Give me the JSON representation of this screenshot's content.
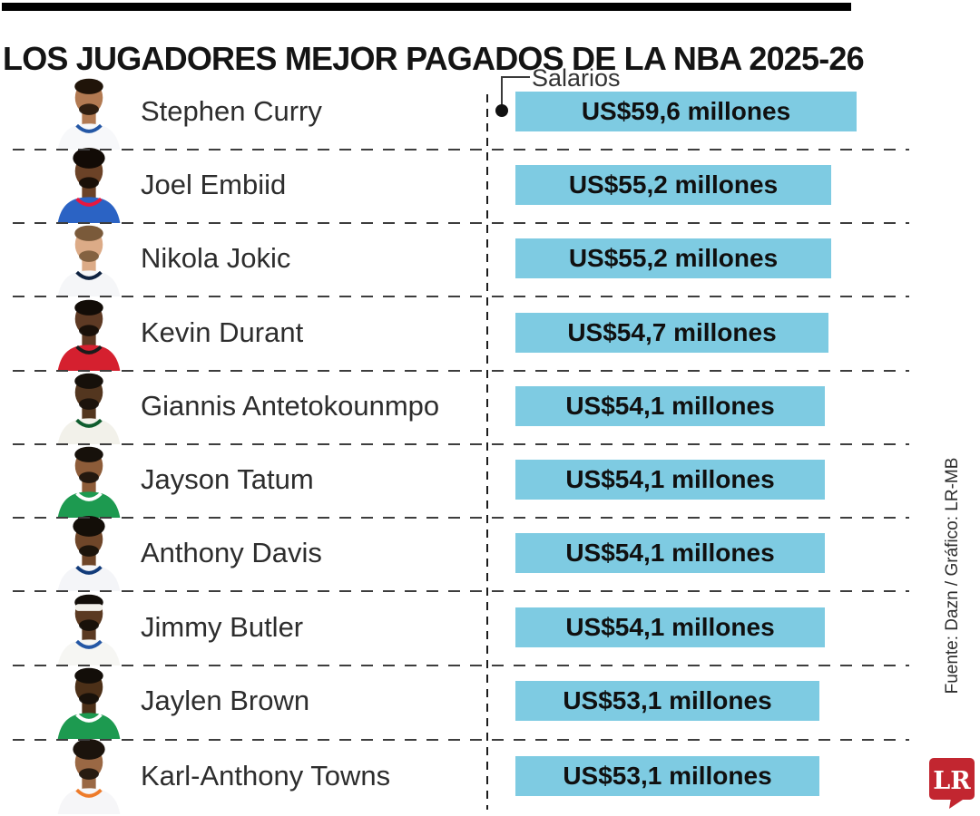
{
  "header": {
    "title": "LOS JUGADORES MEJOR PAGADOS DE LA NBA 2025-26"
  },
  "annotation": {
    "salarios_label": "Salarios"
  },
  "footer": {
    "source_text": "Fuente: Dazn / Gráfico: LR-MB",
    "logo_text": "LR"
  },
  "colors": {
    "bar": "#7ecbe2",
    "logo_red": "#c22630"
  },
  "chart_data": {
    "type": "bar",
    "orientation": "horizontal",
    "title": "LOS JUGADORES MEJOR PAGADOS DE LA NBA 2025-26",
    "value_axis_label": "Salarios",
    "unit": "millones de US$",
    "source": "Fuente: Dazn / Gráfico: LR-MB",
    "categories": [
      "Stephen Curry",
      "Joel Embiid",
      "Nikola Jokic",
      "Kevin Durant",
      "Giannis Antetokounmpo",
      "Jayson Tatum",
      "Anthony Davis",
      "Jimmy Butler",
      "Jaylen Brown",
      "Karl-Anthony Towns"
    ],
    "values": [
      59.6,
      55.2,
      55.2,
      54.7,
      54.1,
      54.1,
      54.1,
      54.1,
      53.1,
      53.1
    ],
    "bar_labels": [
      "US$59,6 millones",
      "US$55,2 millones",
      "US$55,2 millones",
      "US$54,7 millones",
      "US$54,1 millones",
      "US$54,1 millones",
      "US$54,1 millones",
      "US$54,1 millones",
      "US$53,1 millones",
      "US$53,1 millones"
    ],
    "avatars": [
      {
        "jersey": "#f7f8fa",
        "trim": "#2457a5",
        "skin": "#b27a52",
        "hair": "#201409",
        "headband": false,
        "beard": true,
        "bigHair": false
      },
      {
        "jersey": "#2b63c4",
        "trim": "#e8173f",
        "skin": "#6b4227",
        "hair": "#120b06",
        "headband": false,
        "beard": true,
        "bigHair": true
      },
      {
        "jersey": "#f5f6f8",
        "trim": "#0e2240",
        "skin": "#dcab87",
        "hair": "#7a5a3a",
        "headband": false,
        "beard": true,
        "bigHair": false
      },
      {
        "jersey": "#d5202f",
        "trim": "#1b1b1b",
        "skin": "#5e3a24",
        "hair": "#120c07",
        "headband": false,
        "beard": true,
        "bigHair": false
      },
      {
        "jersey": "#f2f1ea",
        "trim": "#0f5c2e",
        "skin": "#53361f",
        "hair": "#16100a",
        "headband": false,
        "beard": true,
        "bigHair": false
      },
      {
        "jersey": "#1d9a50",
        "trim": "#ffffff",
        "skin": "#8d5c39",
        "hair": "#17110b",
        "headband": false,
        "beard": true,
        "bigHair": false
      },
      {
        "jersey": "#f4f5f8",
        "trim": "#123b7a",
        "skin": "#6f4629",
        "hair": "#130e08",
        "headband": false,
        "beard": true,
        "bigHair": true
      },
      {
        "jersey": "#f6f6f3",
        "trim": "#2457a5",
        "skin": "#5b3a22",
        "hair": "#120d08",
        "headband": true,
        "beard": true,
        "bigHair": false
      },
      {
        "jersey": "#1d9a50",
        "trim": "#ffffff",
        "skin": "#4c3018",
        "hair": "#130e09",
        "headband": false,
        "beard": true,
        "bigHair": false
      },
      {
        "jersey": "#f6f6f8",
        "trim": "#ee7b2a",
        "skin": "#9a6844",
        "hair": "#1b130c",
        "headband": false,
        "beard": true,
        "bigHair": true
      }
    ]
  }
}
